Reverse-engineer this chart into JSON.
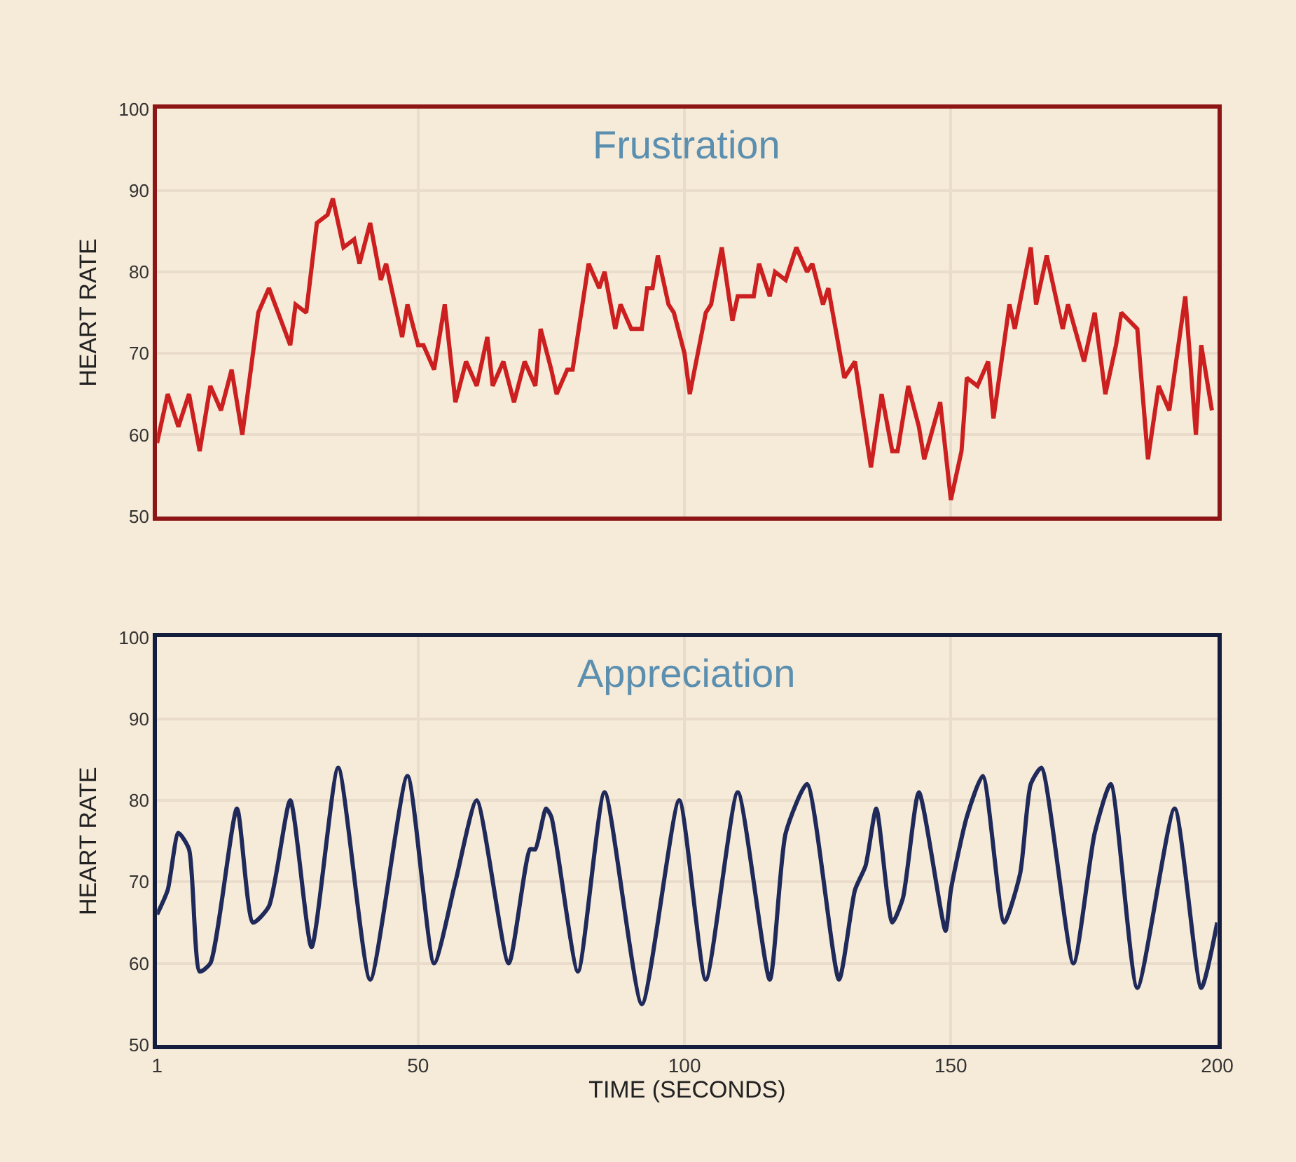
{
  "chart_data": [
    {
      "type": "line",
      "title": "Frustration",
      "ylabel": "HEART RATE",
      "xlim": [
        1,
        200
      ],
      "ylim": [
        50,
        100
      ],
      "yticks": [
        50,
        60,
        70,
        80,
        90,
        100
      ],
      "xticks": [
        {
          "value": 1,
          "label": null
        },
        {
          "value": 50,
          "label": null
        },
        {
          "value": 100,
          "label": null
        },
        {
          "value": 150,
          "label": null
        },
        {
          "value": 200,
          "label": null
        }
      ],
      "tick_labels": "y",
      "grid": true,
      "series": [
        {
          "color": "#cc1f1f",
          "x": [
            1,
            3,
            5,
            7,
            9,
            11,
            13,
            15,
            17,
            20,
            22,
            26,
            27,
            29,
            31,
            33,
            34,
            36,
            38,
            39,
            41,
            43,
            44,
            47,
            48,
            50,
            51,
            53,
            55,
            57,
            59,
            61,
            63,
            64,
            66,
            68,
            70,
            72,
            73,
            75,
            76,
            78,
            79,
            82,
            84,
            85,
            87,
            88,
            90,
            92,
            93,
            94,
            95,
            97,
            98,
            100,
            101,
            104,
            105,
            107,
            109,
            110,
            113,
            114,
            116,
            117,
            119,
            121,
            123,
            124,
            126,
            127,
            130,
            132,
            135,
            137,
            139,
            140,
            142,
            144,
            145,
            148,
            150,
            152,
            153,
            155,
            157,
            158,
            161,
            162,
            165,
            166,
            168,
            171,
            172,
            175,
            177,
            179,
            181,
            182,
            185,
            187,
            189,
            191,
            194,
            196,
            197,
            199
          ],
          "values": [
            59,
            65,
            61,
            65,
            58,
            66,
            63,
            68,
            60,
            75,
            78,
            71,
            76,
            75,
            86,
            87,
            89,
            83,
            84,
            81,
            86,
            79,
            81,
            72,
            76,
            71,
            71,
            68,
            76,
            64,
            69,
            66,
            72,
            66,
            69,
            64,
            69,
            66,
            73,
            68,
            65,
            68,
            68,
            81,
            78,
            80,
            73,
            76,
            73,
            73,
            78,
            78,
            82,
            76,
            75,
            70,
            65,
            75,
            76,
            83,
            74,
            77,
            77,
            81,
            77,
            80,
            79,
            83,
            80,
            81,
            76,
            78,
            67,
            69,
            56,
            65,
            58,
            58,
            66,
            61,
            57,
            64,
            52,
            58,
            67,
            66,
            69,
            62,
            76,
            73,
            83,
            76,
            82,
            73,
            76,
            69,
            75,
            65,
            71,
            75,
            73,
            57,
            66,
            63,
            77,
            60,
            71,
            63
          ]
        }
      ]
    },
    {
      "type": "line",
      "title": "Appreciation",
      "ylabel": "HEART RATE",
      "xlabel": "TIME (SECONDS)",
      "xlim": [
        1,
        200
      ],
      "ylim": [
        50,
        100
      ],
      "yticks": [
        50,
        60,
        70,
        80,
        90,
        100
      ],
      "xticks": [
        1,
        50,
        100,
        150,
        200
      ],
      "grid": true,
      "series": [
        {
          "color": "#1f2a5a",
          "x": [
            1,
            3,
            5,
            7,
            9,
            11,
            16,
            19,
            22,
            26,
            30,
            35,
            41,
            48,
            53,
            57,
            61,
            67,
            71,
            72,
            74,
            75,
            80,
            85,
            92,
            99,
            104,
            110,
            116,
            119,
            123,
            129,
            132,
            134,
            136,
            139,
            141,
            144,
            149,
            150,
            153,
            156,
            160,
            163,
            165,
            167,
            173,
            177,
            180,
            185,
            192,
            197,
            200
          ],
          "values": [
            66,
            69,
            76,
            74,
            59,
            60,
            79,
            65,
            67,
            80,
            62,
            84,
            58,
            83,
            60,
            70,
            80,
            60,
            74,
            74,
            79,
            78,
            59,
            81,
            55,
            80,
            58,
            81,
            58,
            76,
            82,
            58,
            69,
            72,
            79,
            65,
            68,
            81,
            64,
            69,
            78,
            83,
            65,
            71,
            82,
            84,
            60,
            76,
            82,
            57,
            79,
            57,
            65
          ]
        }
      ]
    }
  ]
}
